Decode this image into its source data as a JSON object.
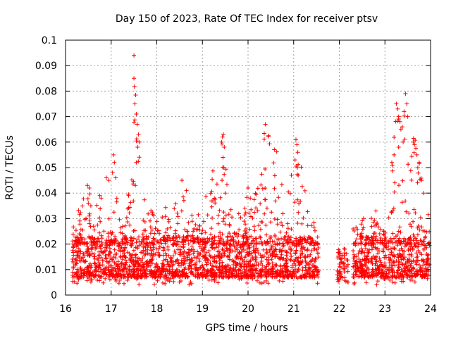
{
  "chart_data": {
    "type": "scatter",
    "title": "Day 150 of 2023, Rate Of TEC Index for receiver ptsv",
    "xlabel": "GPS time / hours",
    "ylabel": "ROTI / TECUs",
    "xlim": [
      16,
      24
    ],
    "ylim": [
      0,
      0.1
    ],
    "x_ticks": [
      "16",
      "17",
      "18",
      "19",
      "20",
      "21",
      "22",
      "23",
      "24"
    ],
    "y_ticks": [
      "0",
      "0.01",
      "0.02",
      "0.03",
      "0.04",
      "0.05",
      "0.06",
      "0.07",
      "0.08",
      "0.09",
      "0.1"
    ],
    "grid": true,
    "marker": "+",
    "color": "#ff0000",
    "gap": [
      21.55,
      22.3
    ],
    "envelope": [
      {
        "x": 16.15,
        "max": 0.03
      },
      {
        "x": 16.5,
        "max": 0.043
      },
      {
        "x": 16.75,
        "max": 0.04
      },
      {
        "x": 17.0,
        "max": 0.055
      },
      {
        "x": 17.3,
        "max": 0.025
      },
      {
        "x": 17.5,
        "max": 0.094
      },
      {
        "x": 17.7,
        "max": 0.04
      },
      {
        "x": 18.0,
        "max": 0.03
      },
      {
        "x": 18.55,
        "max": 0.045
      },
      {
        "x": 18.8,
        "max": 0.03
      },
      {
        "x": 19.0,
        "max": 0.037
      },
      {
        "x": 19.45,
        "max": 0.063
      },
      {
        "x": 19.7,
        "max": 0.03
      },
      {
        "x": 20.0,
        "max": 0.04
      },
      {
        "x": 20.4,
        "max": 0.067
      },
      {
        "x": 20.9,
        "max": 0.047
      },
      {
        "x": 21.05,
        "max": 0.061
      },
      {
        "x": 21.3,
        "max": 0.045
      },
      {
        "x": 21.5,
        "max": 0.025
      },
      {
        "x": 22.0,
        "max": 0.02
      },
      {
        "x": 22.3,
        "max": 0.028
      },
      {
        "x": 22.75,
        "max": 0.038
      },
      {
        "x": 23.0,
        "max": 0.025
      },
      {
        "x": 23.25,
        "max": 0.075
      },
      {
        "x": 23.45,
        "max": 0.079
      },
      {
        "x": 23.7,
        "max": 0.06
      },
      {
        "x": 23.95,
        "max": 0.045
      }
    ],
    "series": [
      {
        "x": [
          17.5,
          17.5,
          17.52,
          17.55,
          17.57,
          17.6,
          17.62,
          17.58,
          17.55,
          17.53,
          17.05,
          17.07,
          17.03,
          17.1,
          16.95,
          19.42,
          19.44,
          19.46,
          19.48,
          19.45,
          19.47,
          19.43,
          19.5,
          20.38,
          21.05,
          21.07,
          21.09,
          21.03,
          21.08,
          21.1,
          23.25,
          23.28,
          23.3,
          23.33,
          23.35,
          23.4,
          23.42,
          23.45,
          23.48,
          23.5,
          23.38,
          23.3,
          23.2,
          23.15,
          23.62,
          23.65,
          23.7,
          23.75,
          23.72,
          23.8,
          23.85,
          16.48,
          16.52,
          16.75,
          16.78,
          18.55,
          18.65,
          20.0,
          20.05,
          20.95
        ],
        "y": [
          0.094,
          0.085,
          0.075,
          0.071,
          0.067,
          0.063,
          0.06,
          0.058,
          0.052,
          0.043,
          0.055,
          0.052,
          0.048,
          0.046,
          0.045,
          0.06,
          0.062,
          0.063,
          0.058,
          0.054,
          0.05,
          0.045,
          0.04,
          0.067,
          0.061,
          0.059,
          0.056,
          0.053,
          0.05,
          0.047,
          0.075,
          0.073,
          0.07,
          0.068,
          0.065,
          0.06,
          0.072,
          0.079,
          0.075,
          0.07,
          0.066,
          0.058,
          0.055,
          0.052,
          0.06,
          0.059,
          0.055,
          0.052,
          0.05,
          0.045,
          0.04,
          0.043,
          0.042,
          0.039,
          0.038,
          0.045,
          0.041,
          0.042,
          0.038,
          0.047
        ]
      }
    ]
  }
}
